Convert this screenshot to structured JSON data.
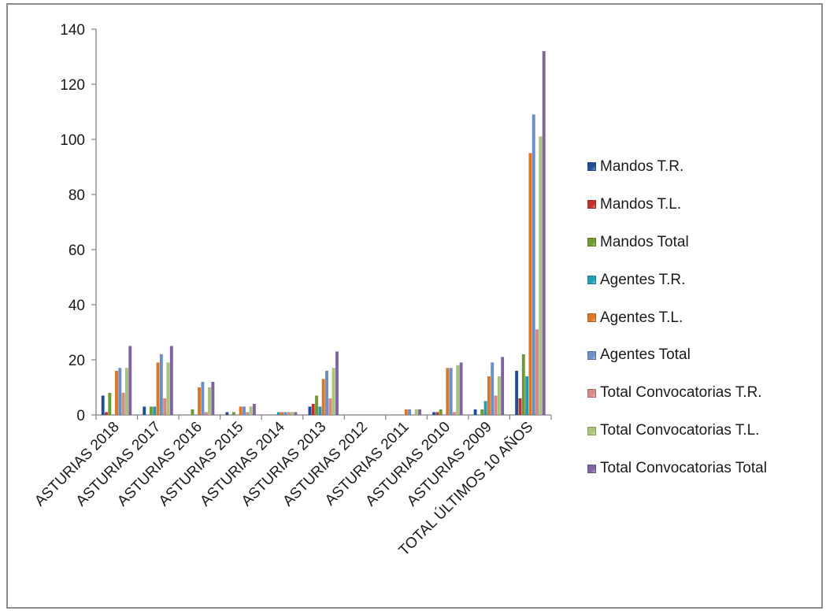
{
  "chart_data": {
    "type": "bar",
    "title": "",
    "xlabel": "",
    "ylabel": "",
    "ylim": [
      0,
      140
    ],
    "yticks": [
      "0",
      "20",
      "40",
      "60",
      "80",
      "100",
      "120",
      "140"
    ],
    "grid": false,
    "legend_position": "right",
    "categories": [
      "ASTURIAS 2018",
      "ASTURIAS 2017",
      "ASTURIAS 2016",
      "ASTURIAS 2015",
      "ASTURIAS 2014",
      "ASTURIAS 2013",
      "ASTURIAS 2012",
      "ASTURIAS 2011",
      "ASTURIAS 2010",
      "ASTURIAS 2009",
      "TOTAL ÚLTIMOS 10 AÑOS"
    ],
    "series": [
      {
        "name": "Mandos T.R.",
        "color": "#1f4e96",
        "values": [
          7,
          3,
          0,
          1,
          0,
          3,
          0,
          0,
          1,
          2,
          16
        ]
      },
      {
        "name": "Mandos T.L.",
        "color": "#c0312d",
        "values": [
          1,
          0,
          0,
          0,
          0,
          4,
          0,
          0,
          1,
          0,
          6
        ]
      },
      {
        "name": "Mandos Total",
        "color": "#6f9a2f",
        "values": [
          8,
          3,
          2,
          1,
          0,
          7,
          0,
          0,
          2,
          2,
          22
        ]
      },
      {
        "name": "Agentes T.R.",
        "color": "#1e9db4",
        "values": [
          0,
          3,
          0,
          0,
          1,
          3,
          0,
          0,
          0,
          5,
          14
        ]
      },
      {
        "name": "Agentes T.L.",
        "color": "#e2761f",
        "values": [
          16,
          19,
          10,
          3,
          1,
          13,
          0,
          2,
          17,
          14,
          95
        ]
      },
      {
        "name": "Agentes Total",
        "color": "#6b8fc6",
        "values": [
          17,
          22,
          12,
          3,
          1,
          16,
          0,
          2,
          17,
          19,
          109
        ]
      },
      {
        "name": "Total Convocatorias T.R.",
        "color": "#d98a87",
        "values": [
          8,
          6,
          1,
          1,
          1,
          6,
          0,
          0,
          1,
          7,
          31
        ]
      },
      {
        "name": "Total Convocatorias T.L.",
        "color": "#a9c57b",
        "values": [
          17,
          19,
          10,
          3,
          1,
          17,
          0,
          2,
          18,
          14,
          101
        ]
      },
      {
        "name": "Total Convocatorias Total",
        "color": "#8064a2",
        "values": [
          25,
          25,
          12,
          4,
          1,
          23,
          0,
          2,
          19,
          21,
          132
        ]
      }
    ]
  }
}
